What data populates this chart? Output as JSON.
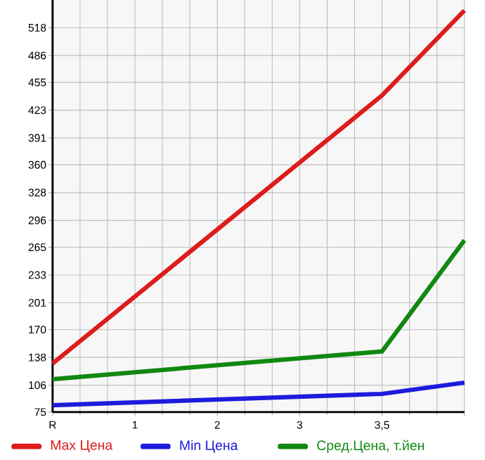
{
  "chart_data": {
    "type": "line",
    "categories": [
      "R",
      "1",
      "2",
      "3",
      "3,5",
      null
    ],
    "series": [
      {
        "name": "Max Цена",
        "color": "#dd1c1c",
        "values": [
          131,
          null,
          null,
          null,
          440,
          538
        ]
      },
      {
        "name": "Min Цена",
        "color": "#1c1cdd",
        "values": [
          83,
          null,
          null,
          null,
          96,
          109
        ]
      },
      {
        "name": "Сред.Цена, т.йен",
        "color": "#118811",
        "values": [
          113,
          null,
          null,
          null,
          145,
          273
        ]
      }
    ],
    "ylim": [
      75,
      550
    ],
    "yticks": [
      75,
      106,
      138,
      170,
      201,
      233,
      265,
      296,
      328,
      360,
      391,
      423,
      455,
      486,
      518
    ],
    "grid": true,
    "legend": "bottom",
    "marker": "none",
    "line_style": "solid"
  }
}
